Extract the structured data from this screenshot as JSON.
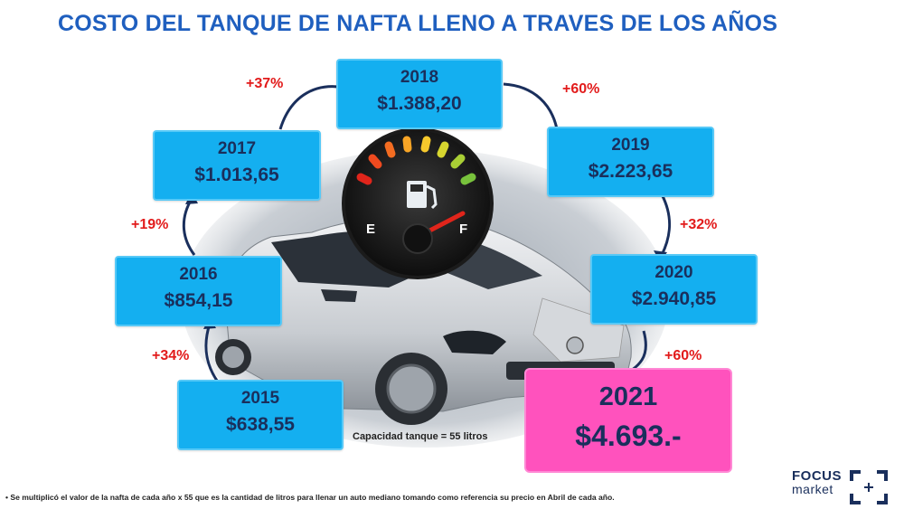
{
  "title": "COSTO DEL TANQUE DE NAFTA LLENO A TRAVES DE LOS AÑOS",
  "years": [
    {
      "year": "2015",
      "value": "$638,55"
    },
    {
      "year": "2016",
      "value": "$854,15"
    },
    {
      "year": "2017",
      "value": "$1.013,65"
    },
    {
      "year": "2018",
      "value": "$1.388,20"
    },
    {
      "year": "2019",
      "value": "$2.223,65"
    },
    {
      "year": "2020",
      "value": "$2.940,85"
    },
    {
      "year": "2021",
      "value": "$4.693.-"
    }
  ],
  "increases": [
    "+34%",
    "+19%",
    "+37%",
    "+60%",
    "+32%",
    "+60%"
  ],
  "gauge": {
    "empty_label": "E",
    "full_label": "F"
  },
  "capacity_note": "Capacidad tanque = 55 litros",
  "footnote": "• Se multiplicó el valor de la nafta de  cada año x 55 que es la cantidad de litros  para llenar un auto mediano tomando como referencia su precio en Abril de cada año.",
  "logo": {
    "line1": "FOCUS",
    "line2": "market"
  },
  "colors": {
    "box": "#14aff0",
    "highlight": "#ff52bd",
    "percent": "#e21b1b",
    "title": "#1f5fbf"
  }
}
